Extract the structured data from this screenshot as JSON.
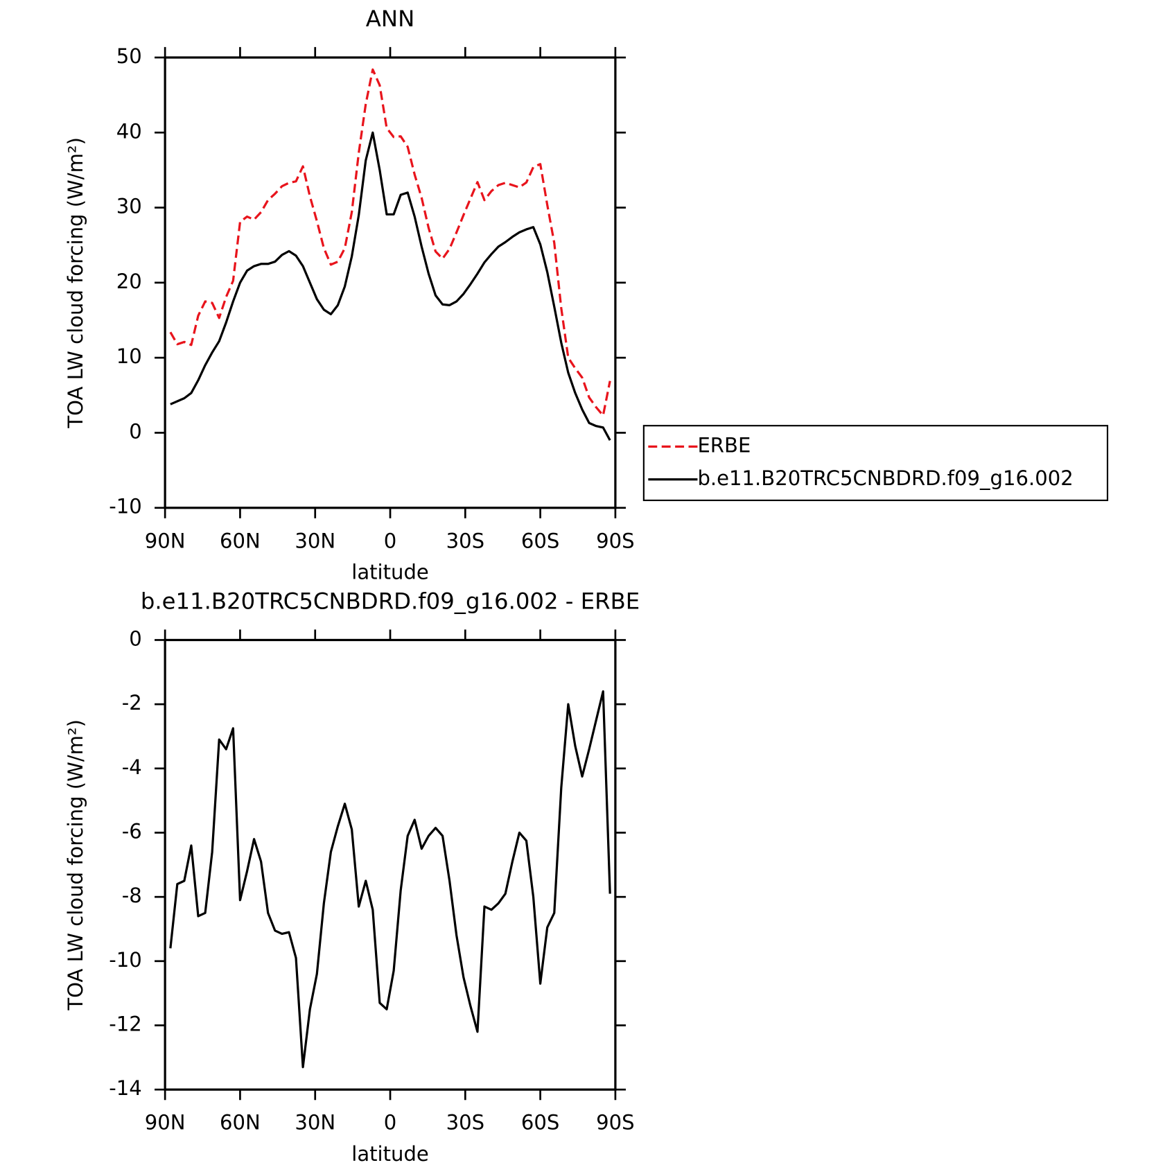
{
  "chart_data": [
    {
      "type": "line",
      "title": "ANN",
      "xlabel": "latitude",
      "ylabel": "TOA LW cloud forcing (W/m²)",
      "x": [
        87.86,
        85.1,
        82.31,
        79.53,
        76.74,
        73.95,
        71.16,
        68.37,
        65.58,
        62.79,
        60.0,
        57.21,
        54.42,
        51.63,
        48.84,
        46.04,
        43.25,
        40.46,
        37.67,
        34.88,
        32.09,
        29.3,
        26.51,
        23.72,
        20.93,
        18.14,
        15.35,
        12.56,
        9.77,
        6.98,
        4.19,
        1.4,
        -1.4,
        -4.19,
        -6.98,
        -9.77,
        -12.56,
        -15.35,
        -18.14,
        -20.93,
        -23.72,
        -26.51,
        -29.3,
        -32.09,
        -34.88,
        -37.67,
        -40.46,
        -43.25,
        -46.04,
        -48.84,
        -51.63,
        -54.42,
        -57.21,
        -60.0,
        -62.79,
        -65.58,
        -68.37,
        -71.16,
        -73.95,
        -76.74,
        -79.53,
        -82.31,
        -85.1,
        -87.86
      ],
      "series": [
        {
          "name": "ERBE",
          "color": "#e8141c",
          "linestyle": "dashed",
          "values": [
            13.4,
            11.8,
            12.1,
            11.7,
            15.6,
            17.5,
            17.3,
            15.3,
            18.1,
            20.25,
            28.1,
            28.8,
            28.4,
            29.4,
            31,
            31.85,
            32.85,
            33.3,
            33.5,
            35.5,
            31.5,
            28.2,
            24.6,
            22.4,
            22.8,
            24.6,
            29.4,
            37.3,
            43.8,
            48.4,
            46.3,
            40.6,
            39.4,
            39.5,
            38.1,
            34.4,
            31.3,
            27.3,
            24.15,
            23.2,
            24.5,
            26.7,
            29,
            31.2,
            33.4,
            31,
            32.2,
            33,
            33.3,
            33,
            32.7,
            33.35,
            35.4,
            35.8,
            30.35,
            25.3,
            16.6,
            10,
            8.6,
            7.35,
            4.7,
            3.4,
            2.3,
            6.9
          ]
        },
        {
          "name": "b.e11.B20TRC5CNBDRD.f09_g16.002",
          "color": "#000000",
          "linestyle": "solid",
          "values": [
            3.8,
            4.2,
            4.6,
            5.3,
            7,
            9,
            10.7,
            12.2,
            14.7,
            17.5,
            20,
            21.6,
            22.2,
            22.5,
            22.5,
            22.8,
            23.7,
            24.2,
            23.6,
            22.2,
            20,
            17.8,
            16.4,
            15.8,
            17,
            19.5,
            23.5,
            29,
            36.3,
            40,
            35,
            29.1,
            29.1,
            31.7,
            32,
            28.8,
            24.8,
            21.2,
            18.3,
            17.1,
            17,
            17.5,
            18.5,
            19.8,
            21.2,
            22.7,
            23.8,
            24.8,
            25.4,
            26.1,
            26.7,
            27.1,
            27.4,
            25.1,
            21.4,
            16.8,
            12,
            8,
            5.3,
            3.1,
            1.3,
            0.9,
            0.7,
            -1
          ]
        }
      ],
      "xlim": [
        90,
        -90
      ],
      "xticks": [
        {
          "value": 90,
          "label": "90N"
        },
        {
          "value": 60,
          "label": "60N"
        },
        {
          "value": 30,
          "label": "30N"
        },
        0,
        {
          "value": -30,
          "label": "30S"
        },
        {
          "value": -60,
          "label": "60S"
        },
        {
          "value": -90,
          "label": "90S"
        }
      ],
      "ylim": [
        -10,
        50
      ],
      "yticks": [
        -10,
        0,
        10,
        20,
        30,
        40,
        50
      ],
      "grid": false,
      "legend": "right"
    },
    {
      "type": "line",
      "title": "b.e11.B20TRC5CNBDRD.f09_g16.002 - ERBE",
      "xlabel": "latitude",
      "ylabel": "TOA LW cloud forcing (W/m²)",
      "x": [
        87.86,
        85.1,
        82.31,
        79.53,
        76.74,
        73.95,
        71.16,
        68.37,
        65.58,
        62.79,
        60.0,
        57.21,
        54.42,
        51.63,
        48.84,
        46.04,
        43.25,
        40.46,
        37.67,
        34.88,
        32.09,
        29.3,
        26.51,
        23.72,
        20.93,
        18.14,
        15.35,
        12.56,
        9.77,
        6.98,
        4.19,
        1.4,
        -1.4,
        -4.19,
        -6.98,
        -9.77,
        -12.56,
        -15.35,
        -18.14,
        -20.93,
        -23.72,
        -26.51,
        -29.3,
        -32.09,
        -34.88,
        -37.67,
        -40.46,
        -43.25,
        -46.04,
        -48.84,
        -51.63,
        -54.42,
        -57.21,
        -60.0,
        -62.79,
        -65.58,
        -68.37,
        -71.16,
        -73.95,
        -76.74,
        -79.53,
        -82.31,
        -85.1,
        -87.86
      ],
      "series": [
        {
          "color": "#000000",
          "linestyle": "solid",
          "values": [
            -9.6,
            -7.6,
            -7.5,
            -6.4,
            -8.6,
            -8.5,
            -6.6,
            -3.1,
            -3.4,
            -2.75,
            -8.1,
            -7.2,
            -6.2,
            -6.9,
            -8.5,
            -9.05,
            -9.15,
            -9.1,
            -9.9,
            -13.3,
            -11.5,
            -10.4,
            -8.2,
            -6.6,
            -5.8,
            -5.1,
            -5.9,
            -8.3,
            -7.5,
            -8.4,
            -11.3,
            -11.5,
            -10.3,
            -7.8,
            -6.1,
            -5.6,
            -6.5,
            -6.1,
            -5.85,
            -6.1,
            -7.5,
            -9.2,
            -10.5,
            -11.4,
            -12.2,
            -8.3,
            -8.4,
            -8.2,
            -7.9,
            -6.9,
            -6.0,
            -6.25,
            -8,
            -10.7,
            -8.95,
            -8.5,
            -4.6,
            -2,
            -3.3,
            -4.25,
            -3.4,
            -2.5,
            -1.6,
            -7.9
          ]
        }
      ],
      "xlim": [
        90,
        -90
      ],
      "xticks": [
        {
          "value": 90,
          "label": "90N"
        },
        {
          "value": 60,
          "label": "60N"
        },
        {
          "value": 30,
          "label": "30N"
        },
        0,
        {
          "value": -30,
          "label": "30S"
        },
        {
          "value": -60,
          "label": "60S"
        },
        {
          "value": -90,
          "label": "90S"
        }
      ],
      "ylim": [
        -14,
        0
      ],
      "yticks": [
        -14,
        -12,
        -10,
        -8,
        -6,
        -4,
        -2,
        0
      ],
      "grid": false
    }
  ]
}
